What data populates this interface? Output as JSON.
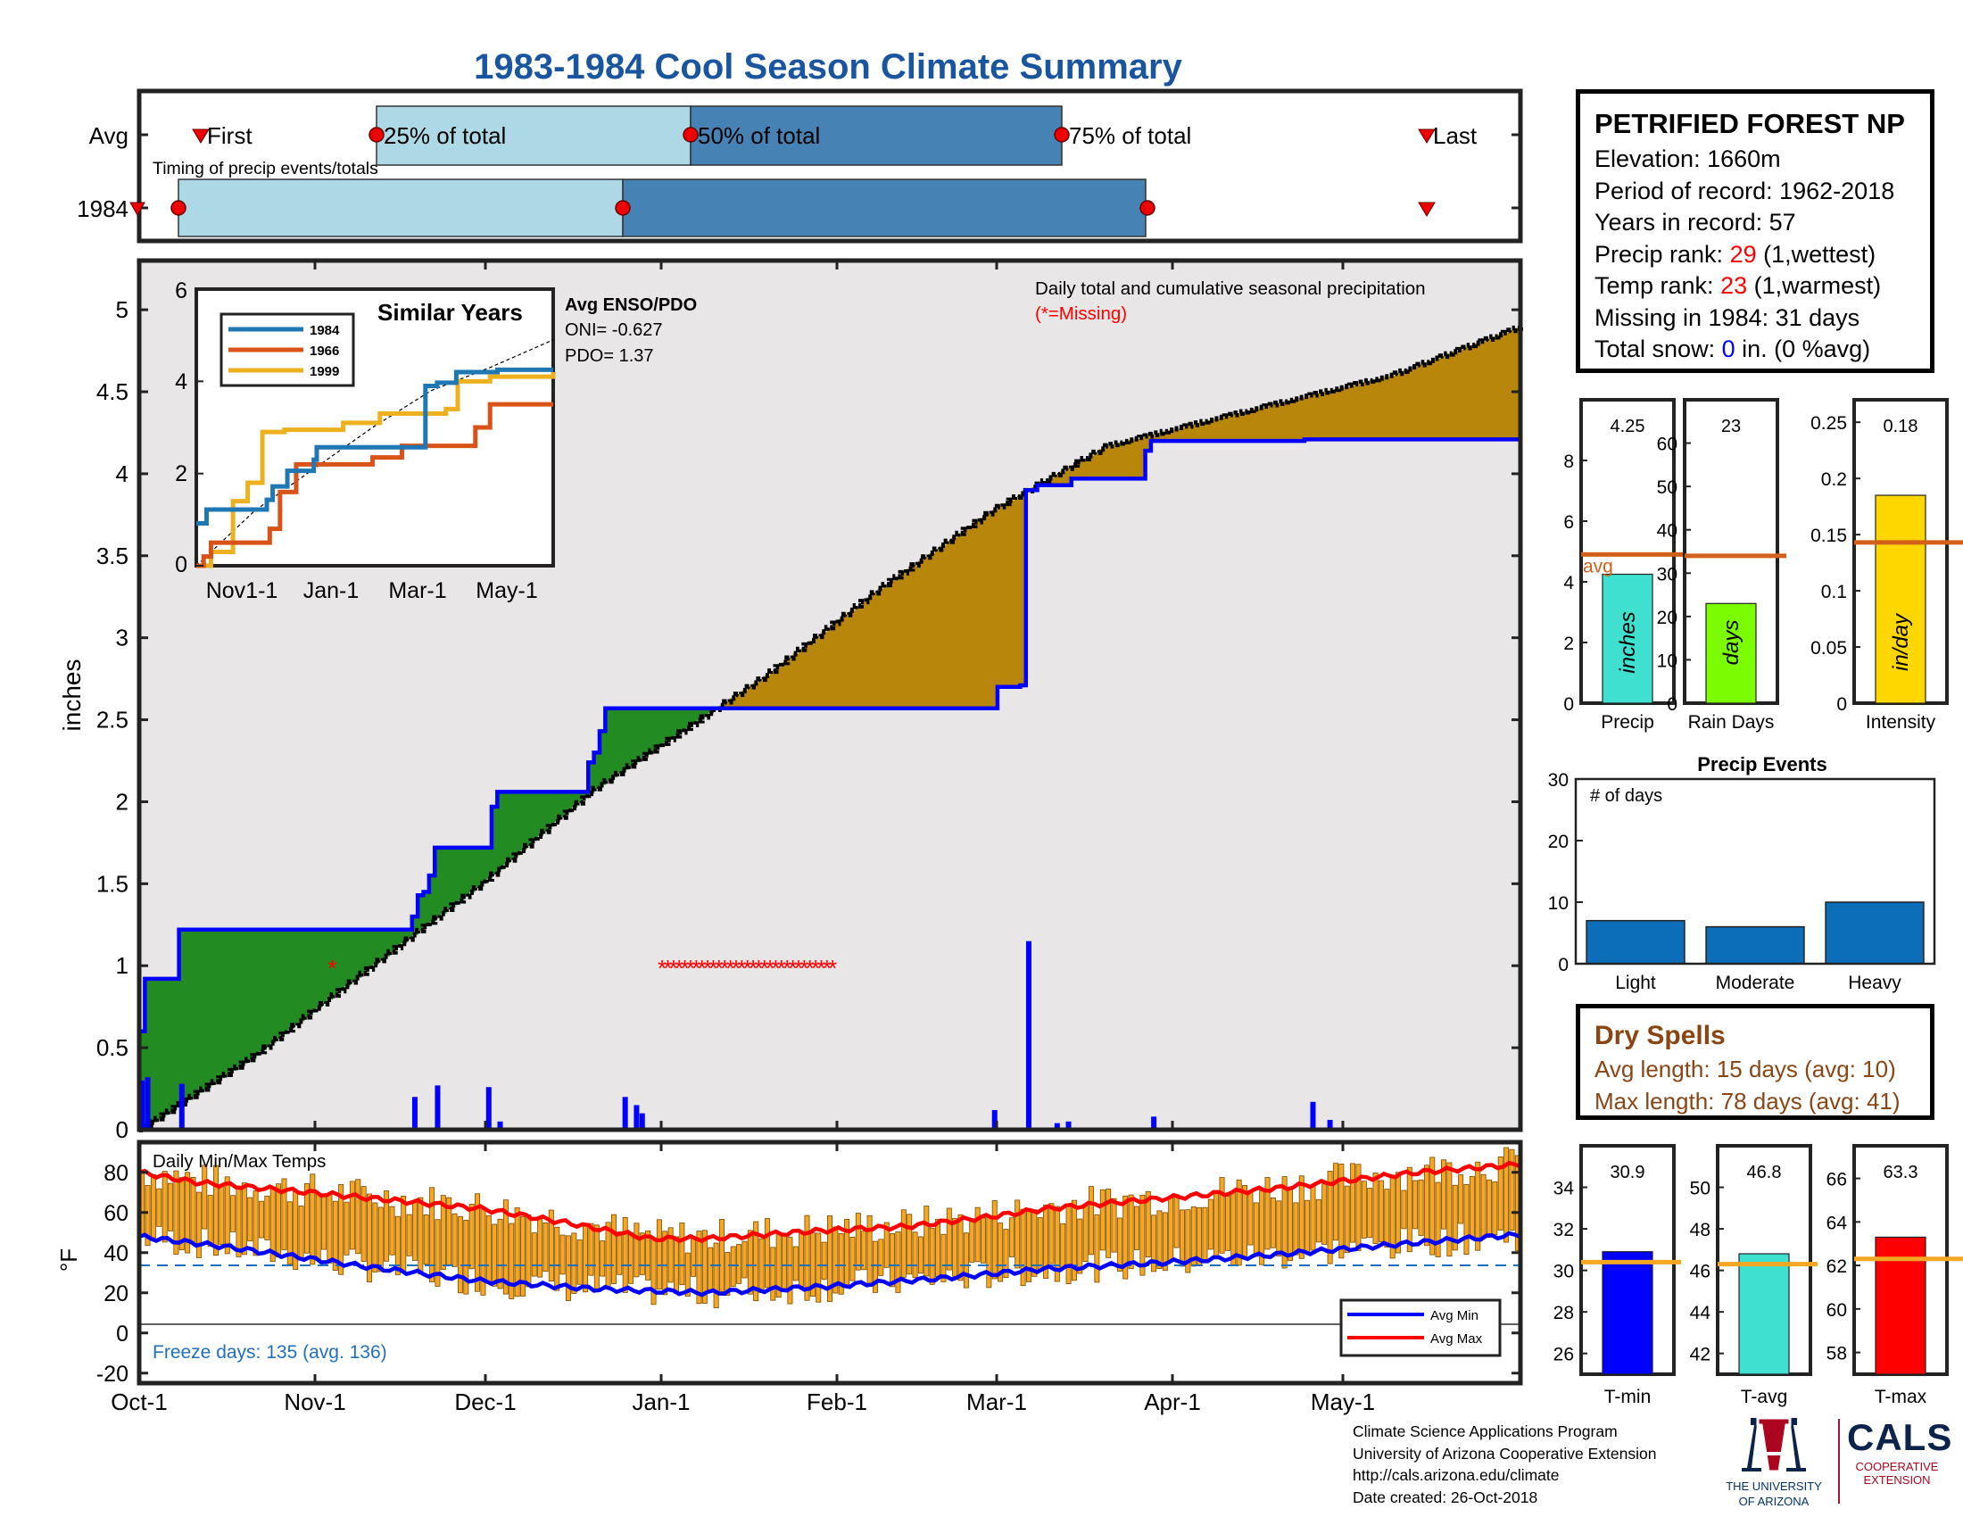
{
  "title": "1983-1984 Cool Season Climate Summary",
  "colors": {
    "title": "#1a56a0",
    "green_fill": "#228b22",
    "brown_fill": "#b8860b",
    "plot_bg": "#e8e6e6",
    "precip_blue": "#0000ff",
    "red": "#ff0000",
    "orange_avg": "#d2601a",
    "temp_bar": "#f5a623",
    "light_blue_box": "#add8e6",
    "steel_blue_box": "#4682b4",
    "event_bar": "#0c6db8"
  },
  "timing": {
    "row_labels": [
      "Avg",
      "1984"
    ],
    "label_first": "First",
    "label_25": "25% of total",
    "label_50": "50% of total",
    "label_75": "75% of total",
    "label_last": "Last",
    "caption": "Timing of precip events/totals"
  },
  "main_chart": {
    "ylabel": "inches",
    "legend_line1": "Daily total and cumulative seasonal precipitation",
    "legend_line2": "(*=Missing)",
    "y_ticks": [
      "0",
      "0.5",
      "1",
      "1.5",
      "2",
      "2.5",
      "3",
      "3.5",
      "4",
      "4.5",
      "5"
    ]
  },
  "inset": {
    "title": "Similar Years",
    "legend": [
      "1984",
      "1966",
      "1999"
    ],
    "y_ticks": [
      "0",
      "2",
      "4",
      "6"
    ],
    "x_ticks": [
      "Nov1-1",
      "Jan-1",
      "Mar-1",
      "May-1"
    ],
    "enso_title": "Avg ENSO/PDO",
    "oni": "ONI= -0.627",
    "pdo": "PDO= 1.37"
  },
  "temp_chart": {
    "title": "Daily Min/Max Temps",
    "ylabel": "°F",
    "y_ticks": [
      "-20",
      "0",
      "20",
      "40",
      "60",
      "80"
    ],
    "freeze": "Freeze days: 135 (avg. 136)",
    "legend_min": "Avg Min",
    "legend_max": "Avg Max"
  },
  "x_axis_ticks": [
    "Oct-1",
    "Nov-1",
    "Dec-1",
    "Jan-1",
    "Feb-1",
    "Mar-1",
    "Apr-1",
    "May-1"
  ],
  "stats": {
    "station": "PETRIFIED FOREST NP",
    "elevation": "Elevation: 1660m",
    "period": "Period of record: 1962-2018",
    "years": "Years in record: 57",
    "precip_rank_label": "Precip rank: ",
    "precip_rank_value": "29",
    "precip_rank_note": " (1,wettest)",
    "temp_rank_label": "Temp rank: ",
    "temp_rank_value": "23",
    "temp_rank_note": " (1,warmest)",
    "missing": "Missing in 1984: 31 days",
    "snow_label": "Total snow: ",
    "snow_value": "0",
    "snow_note": " in. (0 %avg)"
  },
  "mini_bars": [
    {
      "label": "Precip",
      "value_text": "4.25",
      "unit": "inches",
      "value": 4.25,
      "avg": 4.9,
      "ymax": 10,
      "ticks": [
        "0",
        "2",
        "4",
        "6",
        "8"
      ],
      "color": "#40e0d0",
      "avg_label": "avg"
    },
    {
      "label": "Rain Days",
      "value_text": "23",
      "unit": "days",
      "value": 23,
      "avg": 34,
      "ymax": 70,
      "ticks": [
        "0",
        "10",
        "20",
        "30",
        "40",
        "50",
        "60"
      ],
      "color": "#7cfc00"
    },
    {
      "label": "Intensity",
      "value_text": "0.18",
      "unit": "in/day",
      "value": 0.185,
      "avg": 0.143,
      "ymax": 0.27,
      "ticks": [
        "0",
        "0.05",
        "0.1",
        "0.15",
        "0.2",
        "0.25"
      ],
      "color": "#ffd700"
    }
  ],
  "precip_events": {
    "title": "Precip Events",
    "ylabel": "# of days",
    "y_ticks": [
      "0",
      "10",
      "20",
      "30"
    ],
    "categories": [
      "Light",
      "Moderate",
      "Heavy"
    ],
    "values": [
      7,
      6,
      10
    ]
  },
  "dry_spells": {
    "title": "Dry Spells",
    "avg": "Avg length: 15 days (avg: 10)",
    "max": "Max length: 78 days (avg: 41)"
  },
  "temp_bars": [
    {
      "label": "T-min",
      "value_text": "30.9",
      "value": 30.9,
      "avg": 30.4,
      "ymin": 25,
      "ymax": 36,
      "ticks": [
        "26",
        "28",
        "30",
        "32",
        "34"
      ],
      "color": "#0000ff"
    },
    {
      "label": "T-avg",
      "value_text": "46.8",
      "value": 46.8,
      "avg": 46.3,
      "ymin": 41,
      "ymax": 52,
      "ticks": [
        "42",
        "44",
        "46",
        "48",
        "50"
      ],
      "color": "#40e0d0"
    },
    {
      "label": "T-max",
      "value_text": "63.3",
      "value": 63.3,
      "avg": 62.3,
      "ymin": 57,
      "ymax": 67.5,
      "ticks": [
        "58",
        "60",
        "62",
        "64",
        "66"
      ],
      "color": "#ff0000"
    }
  ],
  "footer": {
    "line1": "Climate Science Applications Program",
    "line2": "University of Arizona Cooperative Extension",
    "line3": "http://cals.arizona.edu/climate",
    "line4": "Date created: 26-Oct-2018"
  },
  "logos": {
    "ua_letter": "A",
    "ua_line1": "THE UNIVERSITY",
    "ua_line2": "OF ARIZONA",
    "cals": "CALS",
    "cals_line1": "COOPERATIVE",
    "cals_line2": "EXTENSION"
  },
  "chart_data": [
    {
      "type": "line",
      "name": "Cumulative and daily precipitation",
      "title": "Daily total and cumulative seasonal precipitation",
      "ylabel": "inches",
      "ylim": [
        0,
        5.3
      ],
      "x_ticks": [
        "Oct-1",
        "Nov-1",
        "Dec-1",
        "Jan-1",
        "Feb-1",
        "Mar-1",
        "Apr-1",
        "May-1"
      ],
      "season_days": 243,
      "cumulative_1984_steps": [
        [
          0,
          0.6
        ],
        [
          1,
          0.92
        ],
        [
          7,
          1.22
        ],
        [
          47,
          1.22
        ],
        [
          48,
          1.3
        ],
        [
          49,
          1.43
        ],
        [
          50,
          1.45
        ],
        [
          51,
          1.55
        ],
        [
          52,
          1.72
        ],
        [
          61,
          1.72
        ],
        [
          62,
          1.97
        ],
        [
          63,
          2.06
        ],
        [
          78,
          2.06
        ],
        [
          79,
          2.24
        ],
        [
          80,
          2.3
        ],
        [
          81,
          2.43
        ],
        [
          82,
          2.57
        ],
        [
          150,
          2.57
        ],
        [
          151,
          2.7
        ],
        [
          155,
          2.71
        ],
        [
          156,
          3.9
        ],
        [
          158,
          3.93
        ],
        [
          163,
          3.93
        ],
        [
          164,
          3.97
        ],
        [
          176,
          3.97
        ],
        [
          177,
          4.14
        ],
        [
          178,
          4.2
        ],
        [
          205,
          4.21
        ],
        [
          243,
          4.25
        ]
      ],
      "cumulative_avg_points": [
        [
          0,
          0
        ],
        [
          20,
          0.45
        ],
        [
          40,
          0.98
        ],
        [
          60,
          1.5
        ],
        [
          80,
          2.08
        ],
        [
          110,
          2.77
        ],
        [
          130,
          3.3
        ],
        [
          150,
          3.78
        ],
        [
          170,
          4.17
        ],
        [
          200,
          4.43
        ],
        [
          220,
          4.6
        ],
        [
          243,
          4.9
        ]
      ],
      "daily_precip_1984": [
        [
          0,
          0.3
        ],
        [
          1,
          0.32
        ],
        [
          7,
          0.28
        ],
        [
          48,
          0.2
        ],
        [
          52,
          0.27
        ],
        [
          61,
          0.26
        ],
        [
          63,
          0.05
        ],
        [
          85,
          0.2
        ],
        [
          87,
          0.15
        ],
        [
          88,
          0.1
        ],
        [
          150,
          0.12
        ],
        [
          156,
          1.15
        ],
        [
          161,
          0.04
        ],
        [
          163,
          0.05
        ],
        [
          178,
          0.08
        ],
        [
          206,
          0.17
        ],
        [
          209,
          0.06
        ]
      ],
      "missing_days": [
        34,
        92,
        93,
        94,
        95,
        96,
        97,
        98,
        99,
        100,
        101,
        102,
        103,
        104,
        105,
        106,
        107,
        108,
        109,
        110,
        111,
        112,
        113,
        114,
        115,
        116,
        117,
        118,
        119,
        120,
        121,
        122
      ]
    },
    {
      "type": "line",
      "name": "Similar Years",
      "title": "Similar Years",
      "ylim": [
        0,
        6
      ],
      "x_ticks": [
        "Nov1-1",
        "Jan-1",
        "Mar-1",
        "May-1"
      ],
      "series": [
        {
          "name": "1984",
          "color": "#1f77b4",
          "steps": [
            [
              0,
              0.92
            ],
            [
              7,
              1.22
            ],
            [
              48,
              1.43
            ],
            [
              52,
              1.72
            ],
            [
              62,
              2.06
            ],
            [
              80,
              2.3
            ],
            [
              82,
              2.57
            ],
            [
              156,
              3.9
            ],
            [
              164,
              3.97
            ],
            [
              177,
              4.2
            ],
            [
              205,
              4.25
            ],
            [
              243,
              4.25
            ]
          ]
        },
        {
          "name": "1966",
          "color": "#d95319",
          "steps": [
            [
              0,
              0
            ],
            [
              5,
              0.2
            ],
            [
              10,
              0.5
            ],
            [
              50,
              0.8
            ],
            [
              57,
              1.6
            ],
            [
              68,
              2.2
            ],
            [
              120,
              2.35
            ],
            [
              140,
              2.6
            ],
            [
              190,
              3.0
            ],
            [
              200,
              3.5
            ],
            [
              243,
              3.5
            ]
          ]
        },
        {
          "name": "1999",
          "color": "#edb120",
          "steps": [
            [
              0,
              0
            ],
            [
              10,
              0.3
            ],
            [
              25,
              1.4
            ],
            [
              35,
              1.8
            ],
            [
              45,
              2.9
            ],
            [
              60,
              2.95
            ],
            [
              100,
              3.1
            ],
            [
              125,
              3.3
            ],
            [
              170,
              3.4
            ],
            [
              178,
              4.0
            ],
            [
              200,
              4.1
            ],
            [
              243,
              4.2
            ]
          ]
        }
      ],
      "avg_points": [
        [
          0,
          0
        ],
        [
          40,
          1.2
        ],
        [
          80,
          2.1
        ],
        [
          120,
          3.0
        ],
        [
          160,
          3.8
        ],
        [
          200,
          4.3
        ],
        [
          243,
          4.9
        ]
      ]
    },
    {
      "type": "bar",
      "name": "Daily Min/Max Temps",
      "title": "Daily Min/Max Temps",
      "ylabel": "°F",
      "ylim": [
        -25,
        95
      ],
      "freeze_line": 32,
      "avg_max_points": [
        [
          0,
          80
        ],
        [
          10,
          75
        ],
        [
          30,
          70
        ],
        [
          60,
          62
        ],
        [
          75,
          55
        ],
        [
          90,
          47
        ],
        [
          100,
          47
        ],
        [
          120,
          51
        ],
        [
          135,
          53
        ],
        [
          150,
          58
        ],
        [
          160,
          62
        ],
        [
          180,
          67
        ],
        [
          200,
          72
        ],
        [
          225,
          80
        ],
        [
          243,
          84
        ]
      ],
      "avg_min_points": [
        [
          0,
          48
        ],
        [
          15,
          43
        ],
        [
          40,
          33
        ],
        [
          60,
          26
        ],
        [
          80,
          22
        ],
        [
          100,
          20
        ],
        [
          120,
          23
        ],
        [
          140,
          27
        ],
        [
          160,
          32
        ],
        [
          180,
          35
        ],
        [
          200,
          39
        ],
        [
          225,
          45
        ],
        [
          243,
          49
        ]
      ],
      "approx_daily_range_1984": {
        "max_start": 72,
        "max_end": 90,
        "min_start": 45,
        "min_end": 54
      }
    },
    {
      "type": "bar",
      "name": "Precip Events",
      "title": "Precip Events",
      "categories": [
        "Light",
        "Moderate",
        "Heavy"
      ],
      "values": [
        7,
        6,
        10
      ],
      "ylim": [
        0,
        30
      ]
    }
  ]
}
